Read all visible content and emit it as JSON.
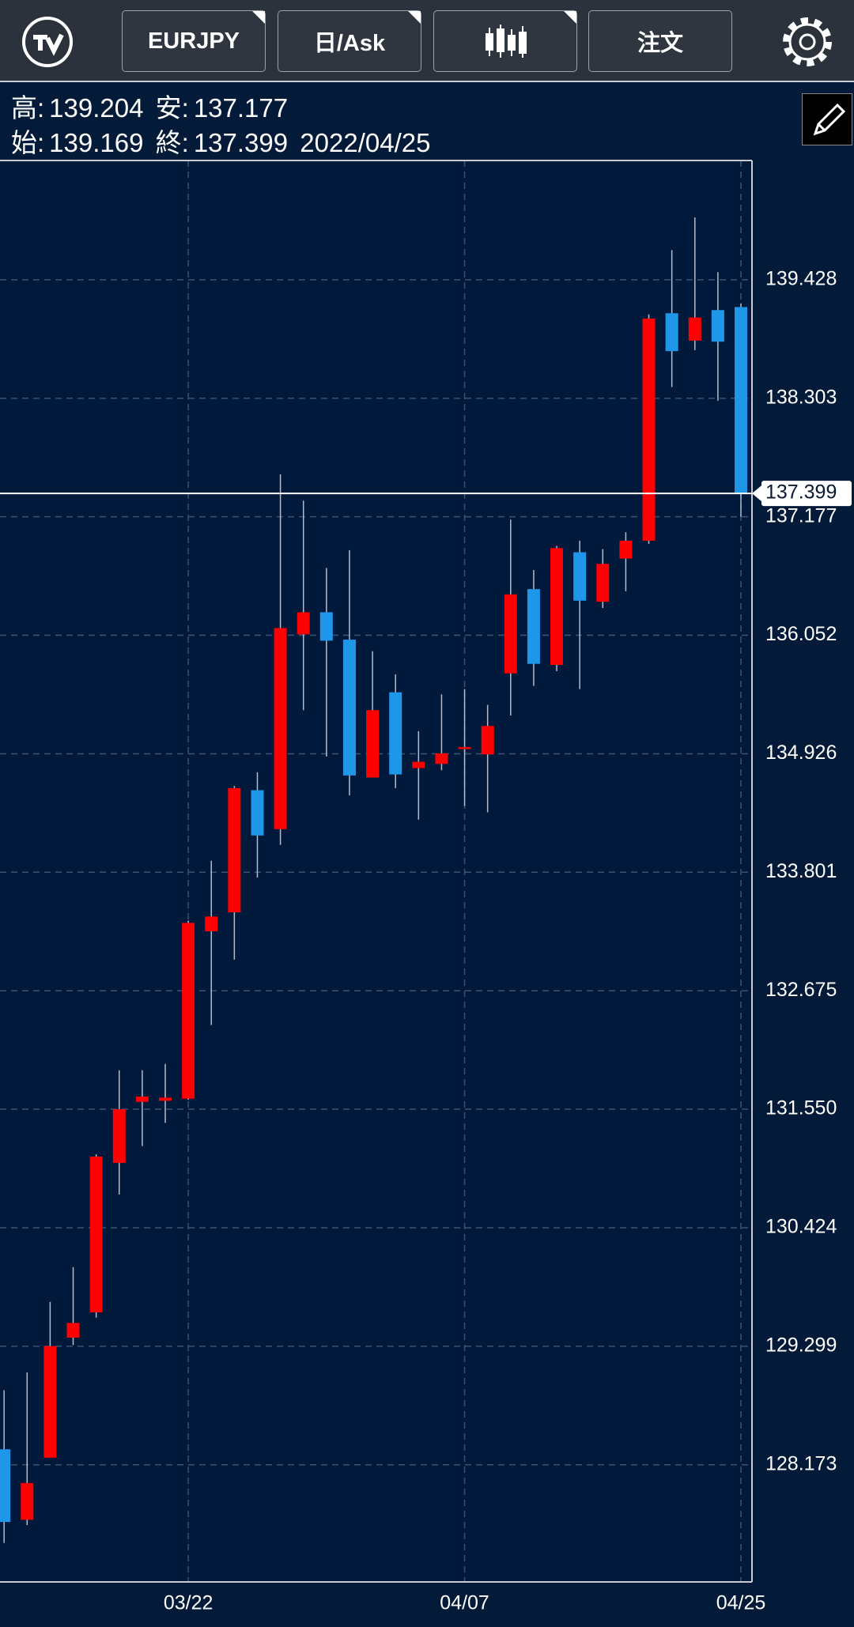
{
  "header": {
    "symbol": "EURJPY",
    "price_type": "日/Ask",
    "order": "注文"
  },
  "info": {
    "high_label": "高:",
    "high": "139.204",
    "low_label": "安:",
    "low": "137.177",
    "open_label": "始:",
    "open": "139.169",
    "close_label": "終:",
    "close": "137.399",
    "date": "2022/04/25"
  },
  "chart_data": {
    "type": "candlestick",
    "categories": [
      null,
      null,
      null,
      null,
      null,
      null,
      null,
      null,
      "03/22",
      null,
      null,
      null,
      null,
      null,
      null,
      null,
      null,
      null,
      null,
      null,
      "04/07",
      null,
      null,
      null,
      null,
      null,
      null,
      null,
      null,
      null,
      null,
      null,
      "04/25"
    ],
    "open": [
      128.32,
      127.65,
      128.24,
      129.38,
      129.62,
      131.04,
      131.62,
      131.63,
      131.65,
      133.24,
      133.42,
      134.58,
      134.21,
      136.06,
      136.27,
      136.01,
      134.7,
      135.51,
      134.79,
      134.83,
      134.97,
      134.92,
      135.69,
      136.49,
      135.77,
      136.84,
      136.37,
      136.78,
      136.95,
      139.11,
      138.85,
      139.14,
      139.169
    ],
    "high": [
      128.88,
      129.05,
      129.72,
      130.05,
      131.12,
      131.92,
      131.92,
      131.98,
      133.34,
      133.91,
      134.62,
      134.75,
      137.58,
      137.33,
      136.69,
      136.86,
      135.9,
      135.68,
      135.14,
      135.49,
      135.54,
      135.39,
      137.15,
      136.67,
      136.9,
      136.95,
      136.87,
      137.03,
      139.1,
      139.71,
      140.02,
      139.5,
      139.204
    ],
    "low": [
      127.43,
      127.6,
      128.24,
      129.31,
      129.57,
      130.74,
      131.2,
      131.42,
      131.64,
      132.35,
      132.97,
      133.75,
      134.06,
      135.34,
      134.9,
      134.53,
      134.7,
      134.6,
      134.3,
      134.77,
      134.43,
      134.37,
      135.29,
      135.57,
      135.71,
      135.54,
      136.31,
      136.47,
      136.92,
      138.41,
      138.76,
      138.28,
      137.177
    ],
    "close": [
      127.63,
      128.0,
      129.3,
      129.52,
      131.1,
      131.55,
      131.67,
      131.66,
      133.32,
      133.38,
      134.6,
      134.15,
      136.12,
      136.27,
      136.0,
      134.72,
      135.34,
      134.73,
      134.85,
      134.93,
      134.99,
      135.19,
      136.44,
      135.78,
      136.88,
      136.38,
      136.73,
      136.95,
      139.06,
      138.75,
      139.07,
      138.84,
      137.399
    ],
    "up_color": "#ff0000",
    "down_color": "#1e96ea",
    "ylim": [
      127.06,
      140.561
    ],
    "yticks": [
      128.173,
      129.299,
      130.424,
      {
        "value": 131.55,
        "label": "131.550"
      },
      132.675,
      133.801,
      134.926,
      136.052,
      137.177,
      138.303,
      139.428
    ],
    "current_price": 137.399,
    "grid": true
  }
}
